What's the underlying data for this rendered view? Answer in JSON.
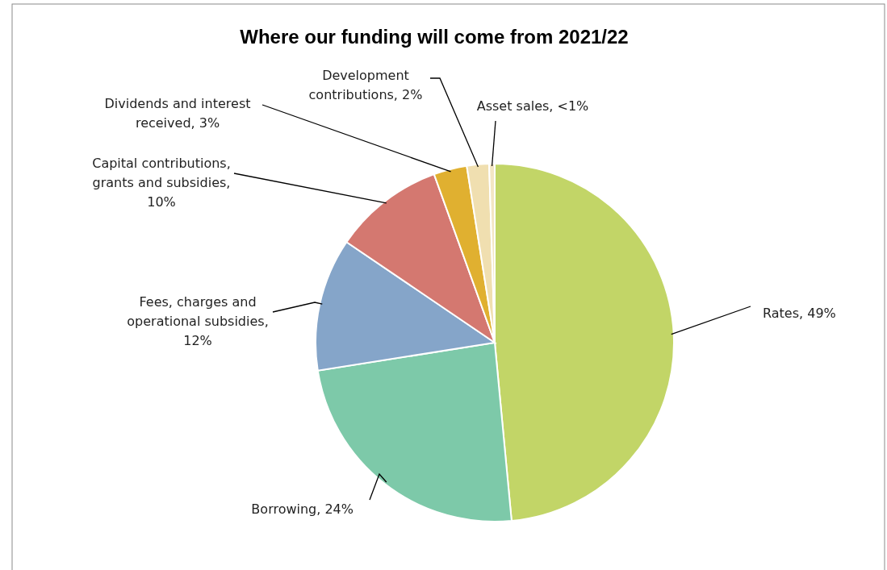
{
  "chart_data": {
    "type": "pie",
    "title": "Where our funding will come from 2021/22",
    "categories": [
      "Rates, 49%",
      "Borrowing, 24%",
      "Fees, charges and operational subsidies, 12%",
      "Capital contributions, grants and subsidies, 10%",
      "Dividends and interest received, 3%",
      "Development contributions, 2%",
      "Asset sales, <1%"
    ],
    "values": [
      48.5,
      24,
      12,
      10,
      3,
      2,
      0.5
    ],
    "colors": [
      "#c2d567",
      "#7dc9a9",
      "#85a5c9",
      "#d47870",
      "#e0b030",
      "#f0dfb0",
      "#f3e6c4"
    ]
  }
}
